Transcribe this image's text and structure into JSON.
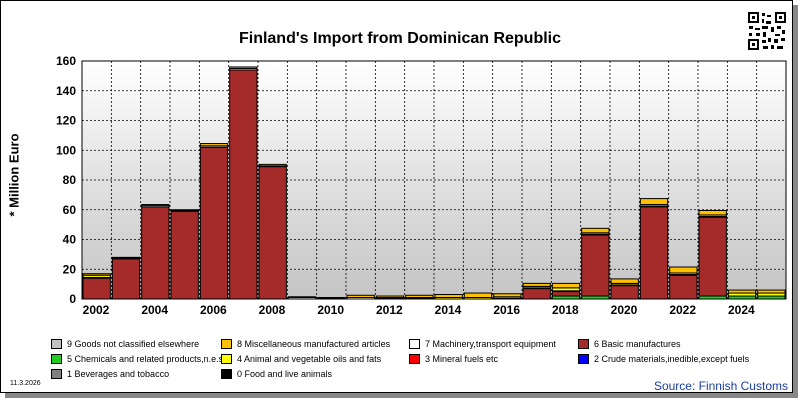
{
  "chart_data": {
    "type": "bar",
    "stacked": true,
    "title": "Finland's Import from Dominican Republic",
    "ylabel": "* Million Euro",
    "ylim": [
      0,
      160
    ],
    "yticks": [
      0,
      20,
      40,
      60,
      80,
      100,
      120,
      140,
      160
    ],
    "xtick_labels": [
      "2002",
      "2004",
      "2006",
      "2008",
      "2010",
      "2012",
      "2014",
      "2016",
      "2018",
      "2020",
      "2022",
      "2024"
    ],
    "periods": [
      "2002",
      "2003",
      "2004",
      "2005",
      "2006",
      "2007",
      "2008",
      "2009",
      "2010",
      "2011",
      "2012",
      "2013",
      "2014",
      "2015",
      "2016",
      "2017",
      "2018",
      "2019",
      "2020",
      "2021",
      "2022",
      "2023",
      "2024",
      "2025"
    ],
    "series": [
      {
        "name": "0 Food and live animals",
        "color": "#000000",
        "values": [
          0,
          0,
          0,
          0,
          0,
          0,
          0,
          0,
          0,
          0,
          0,
          0,
          0,
          0,
          0,
          0,
          0,
          0,
          0,
          0,
          0,
          0,
          0,
          0
        ]
      },
      {
        "name": "1 Beverages and tobacco",
        "color": "#808080",
        "values": [
          0,
          0,
          0,
          0,
          0,
          0,
          0,
          0,
          0,
          0,
          0,
          0,
          0,
          0,
          0,
          0,
          0,
          0,
          0,
          0,
          0,
          0,
          0,
          0
        ]
      },
      {
        "name": "5 Chemicals and related products,n.e.s.",
        "color": "#22cc22",
        "values": [
          0,
          0,
          0,
          0,
          0,
          0,
          0,
          0,
          0,
          0,
          0,
          0,
          0,
          0,
          0,
          0,
          2,
          2,
          0,
          0,
          0,
          2,
          2,
          2
        ]
      },
      {
        "name": "6 Basic manufactures",
        "color": "#a52a2a",
        "values": [
          14,
          27,
          62,
          59,
          102,
          154,
          89,
          0,
          0,
          0,
          0,
          0,
          0,
          0,
          0,
          7,
          3,
          41,
          9,
          62,
          16,
          53,
          0,
          0
        ]
      },
      {
        "name": "7 Machinery,transport equipment",
        "color": "#ffffff",
        "values": [
          0.5,
          0.5,
          1,
          0.5,
          1,
          1,
          0.5,
          1,
          0.5,
          1,
          0.5,
          0.5,
          0,
          0,
          0.5,
          0.5,
          0.5,
          0.5,
          0.5,
          0.5,
          0.5,
          0.5,
          0,
          0
        ]
      },
      {
        "name": "4 Animal and vegetable oils and fats",
        "color": "#ffff00",
        "values": [
          1.5,
          0,
          0,
          0,
          0,
          0,
          0,
          0,
          0,
          0,
          0.5,
          0.5,
          1,
          1,
          1,
          1,
          2,
          1,
          1,
          1,
          1,
          1,
          2,
          2
        ]
      },
      {
        "name": "8 Miscellaneous manufactured articles",
        "color": "#ffc000",
        "values": [
          1,
          0.5,
          0.5,
          0.5,
          1.5,
          1,
          1,
          0.5,
          0.5,
          1.5,
          1,
          1.5,
          2,
          3,
          2,
          2,
          3,
          3,
          3,
          4,
          4,
          3,
          2,
          2
        ]
      },
      {
        "name": "2 Crude materials,inedible,except fuels",
        "color": "#0000ff",
        "values": [
          0,
          0,
          0,
          0,
          0,
          0,
          0,
          0,
          0,
          0,
          0,
          0,
          0,
          0,
          0,
          0,
          0,
          0,
          0,
          0,
          0,
          0,
          0,
          0
        ]
      },
      {
        "name": "3 Mineral fuels etc",
        "color": "#ff0000",
        "values": [
          0,
          0,
          0,
          0,
          0,
          0,
          0,
          0,
          0,
          0,
          0,
          0,
          0,
          0,
          0,
          0,
          0,
          0,
          0,
          0,
          0,
          0,
          0,
          0
        ]
      },
      {
        "name": "9 Goods not classified elsewhere",
        "color": "#c0c0c0",
        "values": [
          0,
          0,
          0,
          0,
          0,
          0,
          0,
          0,
          0,
          0,
          0,
          0,
          0,
          0,
          0,
          0,
          0,
          0,
          0,
          0,
          0,
          0,
          0,
          0
        ]
      }
    ],
    "grid": true
  },
  "legend": [
    {
      "label": "9 Goods not classified elsewhere",
      "color": "#c0c0c0"
    },
    {
      "label": "8 Miscellaneous manufactured articles",
      "color": "#ffc000"
    },
    {
      "label": "7 Machinery,transport equipment",
      "color": "#ffffff"
    },
    {
      "label": "6 Basic manufactures",
      "color": "#a52a2a"
    },
    {
      "label": "5 Chemicals and related products,n.e.s.",
      "color": "#22cc22"
    },
    {
      "label": "4 Animal and vegetable oils and fats",
      "color": "#ffff00"
    },
    {
      "label": "3 Mineral fuels etc",
      "color": "#ff0000"
    },
    {
      "label": "2 Crude materials,inedible,except fuels",
      "color": "#0000ff"
    },
    {
      "label": "1 Beverages and tobacco",
      "color": "#808080"
    },
    {
      "label": "0 Food and live animals",
      "color": "#000000"
    }
  ],
  "footer": {
    "date": "11.3.2026",
    "source": "Source: Finnish Customs"
  }
}
